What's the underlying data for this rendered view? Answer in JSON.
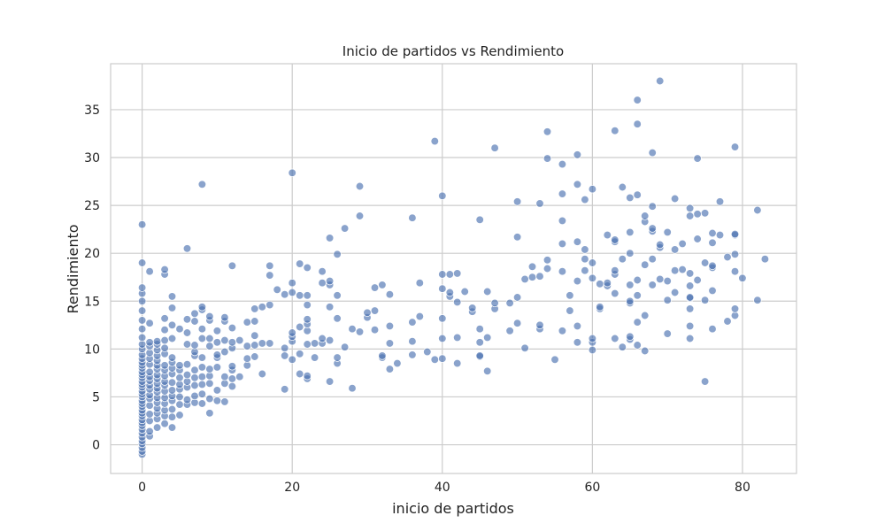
{
  "chart_data": {
    "type": "scatter",
    "title": "Inicio de partidos  vs Rendimiento",
    "xlabel": "inicio de partidos",
    "ylabel": "Rendimiento",
    "xlim": [
      -4.2,
      87.2
    ],
    "ylim": [
      -3.0,
      39.8
    ],
    "xticks": [
      0,
      20,
      40,
      60,
      80
    ],
    "yticks": [
      0,
      5,
      10,
      15,
      20,
      25,
      30,
      35
    ],
    "grid": true,
    "point_color": "#4c72b0",
    "points": [
      [
        0,
        -1.0
      ],
      [
        0,
        -0.7
      ],
      [
        0,
        -0.3
      ],
      [
        0,
        0.1
      ],
      [
        0,
        0.4
      ],
      [
        0,
        0.8
      ],
      [
        0,
        1.2
      ],
      [
        0,
        1.6
      ],
      [
        0,
        2.0
      ],
      [
        0,
        2.3
      ],
      [
        0,
        2.6
      ],
      [
        0,
        3.0
      ],
      [
        0,
        3.3
      ],
      [
        0,
        3.6
      ],
      [
        0,
        4.0
      ],
      [
        0,
        4.3
      ],
      [
        0,
        4.6
      ],
      [
        0,
        5.0
      ],
      [
        0,
        5.3
      ],
      [
        0,
        5.6
      ],
      [
        0,
        6.0
      ],
      [
        0,
        6.3
      ],
      [
        0,
        6.6
      ],
      [
        0,
        7.0
      ],
      [
        0,
        7.3
      ],
      [
        0,
        7.6
      ],
      [
        0,
        8.0
      ],
      [
        0,
        8.3
      ],
      [
        0,
        8.6
      ],
      [
        0,
        9.0
      ],
      [
        0,
        9.4
      ],
      [
        0,
        10.0
      ],
      [
        0,
        10.5
      ],
      [
        0,
        11.2
      ],
      [
        0,
        12.1
      ],
      [
        0,
        13.0
      ],
      [
        0,
        14.0
      ],
      [
        0,
        15.0
      ],
      [
        0,
        15.8
      ],
      [
        0,
        16.4
      ],
      [
        0,
        19.0
      ],
      [
        0,
        23.0
      ],
      [
        1,
        0.9
      ],
      [
        1,
        1.4
      ],
      [
        1,
        2.5
      ],
      [
        1,
        3.2
      ],
      [
        1,
        4.1
      ],
      [
        1,
        4.8
      ],
      [
        1,
        5.2
      ],
      [
        1,
        5.8
      ],
      [
        1,
        6.2
      ],
      [
        1,
        6.7
      ],
      [
        1,
        7.1
      ],
      [
        1,
        7.6
      ],
      [
        1,
        8.4
      ],
      [
        1,
        9.0
      ],
      [
        1,
        9.6
      ],
      [
        1,
        10.3
      ],
      [
        1,
        10.7
      ],
      [
        1,
        12.7
      ],
      [
        1,
        18.1
      ],
      [
        2,
        1.8
      ],
      [
        2,
        2.7
      ],
      [
        2,
        3.3
      ],
      [
        2,
        3.8
      ],
      [
        2,
        4.4
      ],
      [
        2,
        4.9
      ],
      [
        2,
        5.5
      ],
      [
        2,
        5.9
      ],
      [
        2,
        6.4
      ],
      [
        2,
        6.9
      ],
      [
        2,
        7.3
      ],
      [
        2,
        7.9
      ],
      [
        2,
        8.3
      ],
      [
        2,
        8.8
      ],
      [
        2,
        9.3
      ],
      [
        2,
        9.9
      ],
      [
        2,
        10.5
      ],
      [
        2,
        10.8
      ],
      [
        3,
        2.2
      ],
      [
        3,
        3.0
      ],
      [
        3,
        3.6
      ],
      [
        3,
        4.3
      ],
      [
        3,
        4.9
      ],
      [
        3,
        5.6
      ],
      [
        3,
        6.2
      ],
      [
        3,
        6.6
      ],
      [
        3,
        7.2
      ],
      [
        3,
        7.8
      ],
      [
        3,
        8.3
      ],
      [
        3,
        9.5
      ],
      [
        3,
        10.1
      ],
      [
        3,
        10.9
      ],
      [
        3,
        12.0
      ],
      [
        3,
        13.2
      ],
      [
        3,
        17.8
      ],
      [
        3,
        18.3
      ],
      [
        4,
        1.8
      ],
      [
        4,
        2.9
      ],
      [
        4,
        3.7
      ],
      [
        4,
        4.6
      ],
      [
        4,
        5.1
      ],
      [
        4,
        5.7
      ],
      [
        4,
        6.5
      ],
      [
        4,
        7.4
      ],
      [
        4,
        8.0
      ],
      [
        4,
        8.6
      ],
      [
        4,
        9.1
      ],
      [
        4,
        11.1
      ],
      [
        4,
        12.5
      ],
      [
        4,
        14.3
      ],
      [
        4,
        15.5
      ],
      [
        5,
        3.1
      ],
      [
        5,
        4.2
      ],
      [
        5,
        5.0
      ],
      [
        5,
        5.8
      ],
      [
        5,
        6.3
      ],
      [
        5,
        7.0
      ],
      [
        5,
        7.8
      ],
      [
        5,
        8.3
      ],
      [
        5,
        12.1
      ],
      [
        6,
        4.2
      ],
      [
        6,
        4.7
      ],
      [
        6,
        6.0
      ],
      [
        6,
        6.6
      ],
      [
        6,
        7.3
      ],
      [
        6,
        8.4
      ],
      [
        6,
        10.5
      ],
      [
        6,
        11.7
      ],
      [
        6,
        13.1
      ],
      [
        6,
        20.5
      ],
      [
        7,
        4.4
      ],
      [
        7,
        5.1
      ],
      [
        7,
        6.2
      ],
      [
        7,
        7.0
      ],
      [
        7,
        7.8
      ],
      [
        7,
        9.3
      ],
      [
        7,
        9.7
      ],
      [
        7,
        10.4
      ],
      [
        7,
        12.9
      ],
      [
        7,
        13.7
      ],
      [
        8,
        4.3
      ],
      [
        8,
        5.3
      ],
      [
        8,
        6.3
      ],
      [
        8,
        7.1
      ],
      [
        8,
        8.1
      ],
      [
        8,
        9.1
      ],
      [
        8,
        11.1
      ],
      [
        8,
        12.1
      ],
      [
        8,
        14.1
      ],
      [
        8,
        14.4
      ],
      [
        8,
        27.2
      ],
      [
        9,
        3.3
      ],
      [
        9,
        4.8
      ],
      [
        9,
        6.4
      ],
      [
        9,
        7.2
      ],
      [
        9,
        7.9
      ],
      [
        9,
        10.3
      ],
      [
        9,
        11.1
      ],
      [
        9,
        13.0
      ],
      [
        9,
        13.4
      ],
      [
        10,
        4.6
      ],
      [
        10,
        5.7
      ],
      [
        10,
        8.1
      ],
      [
        10,
        9.1
      ],
      [
        10,
        9.4
      ],
      [
        10,
        10.7
      ],
      [
        10,
        11.9
      ],
      [
        11,
        4.5
      ],
      [
        11,
        6.4
      ],
      [
        11,
        7.1
      ],
      [
        11,
        9.7
      ],
      [
        11,
        10.9
      ],
      [
        11,
        12.9
      ],
      [
        11,
        13.3
      ],
      [
        12,
        6.1
      ],
      [
        12,
        6.9
      ],
      [
        12,
        7.8
      ],
      [
        12,
        8.2
      ],
      [
        12,
        10.1
      ],
      [
        12,
        10.7
      ],
      [
        12,
        12.2
      ],
      [
        12,
        18.7
      ],
      [
        13,
        7.1
      ],
      [
        13,
        10.9
      ],
      [
        14,
        8.3
      ],
      [
        14,
        9.0
      ],
      [
        14,
        10.3
      ],
      [
        14,
        12.8
      ],
      [
        15,
        9.2
      ],
      [
        15,
        10.4
      ],
      [
        15,
        11.4
      ],
      [
        15,
        12.9
      ],
      [
        15,
        14.2
      ],
      [
        16,
        7.4
      ],
      [
        16,
        10.6
      ],
      [
        16,
        14.4
      ],
      [
        17,
        10.6
      ],
      [
        17,
        14.6
      ],
      [
        17,
        17.7
      ],
      [
        17,
        18.7
      ],
      [
        18,
        16.2
      ],
      [
        19,
        5.8
      ],
      [
        19,
        9.3
      ],
      [
        19,
        10.1
      ],
      [
        19,
        15.7
      ],
      [
        20,
        8.9
      ],
      [
        20,
        10.8
      ],
      [
        20,
        11.3
      ],
      [
        20,
        11.7
      ],
      [
        20,
        15.9
      ],
      [
        20,
        16.9
      ],
      [
        20,
        28.4
      ],
      [
        21,
        7.4
      ],
      [
        21,
        9.5
      ],
      [
        21,
        12.3
      ],
      [
        21,
        15.6
      ],
      [
        21,
        18.9
      ],
      [
        22,
        6.9
      ],
      [
        22,
        7.2
      ],
      [
        22,
        10.5
      ],
      [
        22,
        11.9
      ],
      [
        22,
        12.6
      ],
      [
        22,
        13.1
      ],
      [
        22,
        14.6
      ],
      [
        22,
        15.6
      ],
      [
        22,
        18.5
      ],
      [
        23,
        9.1
      ],
      [
        23,
        10.6
      ],
      [
        24,
        10.6
      ],
      [
        24,
        11.1
      ],
      [
        24,
        16.9
      ],
      [
        24,
        18.1
      ],
      [
        25,
        6.6
      ],
      [
        25,
        10.9
      ],
      [
        25,
        14.4
      ],
      [
        25,
        16.7
      ],
      [
        25,
        17.1
      ],
      [
        25,
        21.6
      ],
      [
        26,
        8.5
      ],
      [
        26,
        9.1
      ],
      [
        26,
        13.2
      ],
      [
        26,
        15.6
      ],
      [
        26,
        19.9
      ],
      [
        27,
        10.2
      ],
      [
        27,
        22.6
      ],
      [
        28,
        5.9
      ],
      [
        28,
        12.1
      ],
      [
        29,
        11.8
      ],
      [
        29,
        23.9
      ],
      [
        29,
        27.0
      ],
      [
        30,
        13.3
      ],
      [
        30,
        13.8
      ],
      [
        31,
        12.0
      ],
      [
        31,
        14.0
      ],
      [
        31,
        16.4
      ],
      [
        32,
        9.1
      ],
      [
        32,
        9.3
      ],
      [
        32,
        16.7
      ],
      [
        33,
        7.9
      ],
      [
        33,
        10.6
      ],
      [
        33,
        12.4
      ],
      [
        33,
        15.7
      ],
      [
        34,
        8.5
      ],
      [
        36,
        9.4
      ],
      [
        36,
        10.8
      ],
      [
        36,
        12.8
      ],
      [
        36,
        23.7
      ],
      [
        37,
        13.4
      ],
      [
        37,
        16.9
      ],
      [
        38,
        9.7
      ],
      [
        39,
        8.9
      ],
      [
        39,
        31.7
      ],
      [
        40,
        9.0
      ],
      [
        40,
        11.1
      ],
      [
        40,
        13.2
      ],
      [
        40,
        16.3
      ],
      [
        40,
        17.8
      ],
      [
        40,
        26.0
      ],
      [
        41,
        15.5
      ],
      [
        41,
        15.9
      ],
      [
        41,
        17.8
      ],
      [
        42,
        8.5
      ],
      [
        42,
        11.2
      ],
      [
        42,
        14.9
      ],
      [
        42,
        17.9
      ],
      [
        43,
        16.0
      ],
      [
        44,
        13.9
      ],
      [
        44,
        14.3
      ],
      [
        45,
        9.2
      ],
      [
        45,
        9.3
      ],
      [
        45,
        10.7
      ],
      [
        45,
        12.1
      ],
      [
        45,
        23.5
      ],
      [
        46,
        7.7
      ],
      [
        46,
        11.2
      ],
      [
        46,
        16.0
      ],
      [
        47,
        14.2
      ],
      [
        47,
        14.8
      ],
      [
        47,
        31.0
      ],
      [
        49,
        11.9
      ],
      [
        49,
        14.8
      ],
      [
        50,
        12.7
      ],
      [
        50,
        15.4
      ],
      [
        50,
        21.7
      ],
      [
        50,
        25.4
      ],
      [
        51,
        10.1
      ],
      [
        51,
        17.3
      ],
      [
        52,
        17.5
      ],
      [
        52,
        18.6
      ],
      [
        53,
        12.1
      ],
      [
        53,
        12.5
      ],
      [
        53,
        17.6
      ],
      [
        53,
        25.2
      ],
      [
        54,
        18.4
      ],
      [
        54,
        19.3
      ],
      [
        54,
        29.9
      ],
      [
        54,
        32.7
      ],
      [
        55,
        8.9
      ],
      [
        56,
        11.9
      ],
      [
        56,
        18.1
      ],
      [
        56,
        21.0
      ],
      [
        56,
        23.4
      ],
      [
        56,
        26.2
      ],
      [
        56,
        29.3
      ],
      [
        57,
        14.0
      ],
      [
        57,
        15.6
      ],
      [
        58,
        10.7
      ],
      [
        58,
        12.4
      ],
      [
        58,
        17.1
      ],
      [
        58,
        21.2
      ],
      [
        58,
        27.2
      ],
      [
        58,
        30.3
      ],
      [
        59,
        18.2
      ],
      [
        59,
        19.4
      ],
      [
        59,
        20.4
      ],
      [
        59,
        25.6
      ],
      [
        60,
        9.9
      ],
      [
        60,
        10.7
      ],
      [
        60,
        11.1
      ],
      [
        60,
        17.4
      ],
      [
        60,
        19.0
      ],
      [
        60,
        26.7
      ],
      [
        61,
        14.2
      ],
      [
        61,
        14.4
      ],
      [
        61,
        16.8
      ],
      [
        62,
        16.6
      ],
      [
        62,
        16.9
      ],
      [
        62,
        21.9
      ],
      [
        63,
        11.1
      ],
      [
        63,
        15.8
      ],
      [
        63,
        17.8
      ],
      [
        63,
        18.2
      ],
      [
        63,
        21.2
      ],
      [
        63,
        21.4
      ],
      [
        63,
        32.8
      ],
      [
        64,
        10.2
      ],
      [
        64,
        19.4
      ],
      [
        64,
        26.9
      ],
      [
        65,
        11.0
      ],
      [
        65,
        11.3
      ],
      [
        65,
        14.8
      ],
      [
        65,
        15.0
      ],
      [
        65,
        16.7
      ],
      [
        65,
        20.0
      ],
      [
        65,
        22.2
      ],
      [
        65,
        25.8
      ],
      [
        66,
        10.4
      ],
      [
        66,
        12.8
      ],
      [
        66,
        15.6
      ],
      [
        66,
        17.2
      ],
      [
        66,
        26.1
      ],
      [
        66,
        33.5
      ],
      [
        66,
        36.0
      ],
      [
        67,
        9.8
      ],
      [
        67,
        13.5
      ],
      [
        67,
        18.8
      ],
      [
        67,
        23.3
      ],
      [
        67,
        23.9
      ],
      [
        68,
        16.7
      ],
      [
        68,
        19.4
      ],
      [
        68,
        22.3
      ],
      [
        68,
        22.6
      ],
      [
        68,
        24.9
      ],
      [
        68,
        30.5
      ],
      [
        69,
        17.3
      ],
      [
        69,
        20.6
      ],
      [
        69,
        20.9
      ],
      [
        69,
        38.0
      ],
      [
        70,
        11.6
      ],
      [
        70,
        15.1
      ],
      [
        70,
        17.1
      ],
      [
        70,
        22.2
      ],
      [
        71,
        15.9
      ],
      [
        71,
        18.2
      ],
      [
        71,
        20.4
      ],
      [
        71,
        25.7
      ],
      [
        72,
        18.3
      ],
      [
        72,
        21.0
      ],
      [
        73,
        11.1
      ],
      [
        73,
        12.4
      ],
      [
        73,
        14.2
      ],
      [
        73,
        15.3
      ],
      [
        73,
        15.4
      ],
      [
        73,
        16.6
      ],
      [
        73,
        17.9
      ],
      [
        73,
        23.9
      ],
      [
        73,
        24.7
      ],
      [
        74,
        17.2
      ],
      [
        74,
        21.5
      ],
      [
        74,
        24.1
      ],
      [
        74,
        29.9
      ],
      [
        75,
        6.6
      ],
      [
        75,
        15.1
      ],
      [
        75,
        19.0
      ],
      [
        75,
        24.2
      ],
      [
        76,
        12.1
      ],
      [
        76,
        16.1
      ],
      [
        76,
        18.5
      ],
      [
        76,
        18.7
      ],
      [
        76,
        21.1
      ],
      [
        76,
        22.1
      ],
      [
        77,
        21.9
      ],
      [
        77,
        25.4
      ],
      [
        78,
        12.9
      ],
      [
        78,
        19.6
      ],
      [
        79,
        13.5
      ],
      [
        79,
        14.2
      ],
      [
        79,
        18.1
      ],
      [
        79,
        19.9
      ],
      [
        79,
        21.9
      ],
      [
        79,
        22.0
      ],
      [
        79,
        31.1
      ],
      [
        80,
        17.4
      ],
      [
        82,
        15.1
      ],
      [
        82,
        24.5
      ],
      [
        83,
        19.4
      ]
    ]
  }
}
